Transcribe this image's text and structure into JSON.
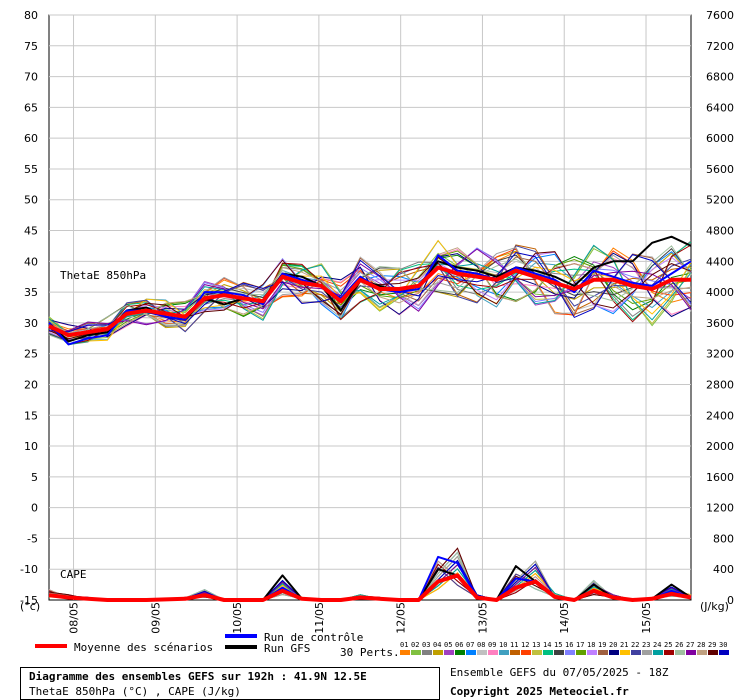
{
  "chart_data": {
    "type": "line",
    "left_axis": {
      "unit": "(°c)",
      "ticks": [
        80,
        75,
        70,
        65,
        60,
        55,
        50,
        45,
        40,
        35,
        30,
        25,
        20,
        15,
        10,
        5,
        0,
        -5,
        -10,
        -15
      ],
      "ylim": [
        -15,
        80
      ]
    },
    "right_axis": {
      "unit": "(J/kg)",
      "ticks": [
        7600,
        7200,
        6800,
        6400,
        6000,
        5600,
        5200,
        4800,
        4400,
        4000,
        3600,
        3200,
        2800,
        2400,
        2000,
        1600,
        1200,
        800,
        400,
        0
      ],
      "ylim": [
        0,
        7600
      ]
    },
    "x": {
      "categories": [
        "08/05",
        "09/05",
        "10/05",
        "11/05",
        "12/05",
        "13/05",
        "14/05",
        "15/05"
      ]
    },
    "annotations": {
      "theta": "ThetaE 850hPa",
      "cape": "CAPE"
    },
    "grid": true,
    "series": [
      {
        "name": "Moyenne des scénarios",
        "group": "theta",
        "color": "#ff0000",
        "y": [
          29.5,
          28,
          28.5,
          29,
          31.5,
          32,
          31.5,
          31,
          34,
          34.5,
          34,
          33.5,
          37.5,
          36.5,
          36,
          33.5,
          37,
          35.5,
          35.5,
          36,
          39,
          38,
          37.5,
          37,
          38.5,
          37.5,
          36.5,
          35.5,
          37,
          37,
          36,
          35.5,
          37,
          37
        ]
      },
      {
        "name": "Run de contrôle",
        "group": "theta",
        "color": "#0000ff",
        "y": [
          30,
          26.5,
          27.5,
          28,
          32,
          32,
          31,
          30.5,
          35,
          35,
          34.5,
          33,
          38,
          37,
          36,
          34,
          37.5,
          35.5,
          35,
          35.5,
          41,
          38.5,
          38,
          37,
          39,
          38,
          37,
          35,
          38.5,
          37.5,
          36.5,
          36,
          38,
          40
        ]
      },
      {
        "name": "Run GFS",
        "group": "theta",
        "color": "#000000",
        "y": [
          30,
          27,
          28,
          28.5,
          32,
          32.5,
          31,
          30.5,
          34,
          33,
          34,
          33.5,
          38,
          37.5,
          36,
          32,
          37,
          36,
          35,
          36,
          40,
          39,
          38.5,
          37.5,
          39,
          38.5,
          37.5,
          36,
          39,
          40,
          40,
          43,
          44,
          42.5
        ]
      },
      {
        "name": "Moyenne des scénarios",
        "group": "cape",
        "color": "#ff0000",
        "y": [
          -14.2,
          -14.6,
          -14.8,
          -15,
          -15,
          -15,
          -14.9,
          -14.8,
          -14.2,
          -15,
          -15,
          -15,
          -13.5,
          -14.8,
          -15,
          -15,
          -14.6,
          -14.8,
          -15,
          -15,
          -12,
          -11,
          -14.6,
          -15,
          -13,
          -12,
          -14.5,
          -15,
          -13.5,
          -14.6,
          -15,
          -14.8,
          -14,
          -14.6
        ]
      },
      {
        "name": "Run de contrôle",
        "group": "cape",
        "color": "#0000ff",
        "y": [
          -14.2,
          -14.6,
          -14.8,
          -15,
          -15,
          -15,
          -14.9,
          -14.8,
          -14,
          -15,
          -15,
          -15,
          -13,
          -14.8,
          -15,
          -15,
          -14.6,
          -14.8,
          -15,
          -15,
          -8,
          -9,
          -14.6,
          -15,
          -11.5,
          -12,
          -14.5,
          -15,
          -13.5,
          -14.6,
          -15,
          -14.8,
          -13.5,
          -14.6
        ]
      },
      {
        "name": "Run GFS",
        "group": "cape",
        "color": "#000000",
        "y": [
          -14.2,
          -14.6,
          -14.8,
          -15,
          -15,
          -15,
          -14.9,
          -14.8,
          -14.2,
          -15,
          -15,
          -15,
          -11,
          -14.8,
          -15,
          -15,
          -14.6,
          -14.8,
          -15,
          -15,
          -10,
          -11,
          -14.6,
          -15,
          -9.5,
          -12,
          -14.5,
          -15,
          -12.5,
          -14.6,
          -15,
          -14.8,
          -12.5,
          -14.6
        ]
      }
    ],
    "members": {
      "label": "30 Perts.",
      "numbers": [
        "01",
        "02",
        "03",
        "04",
        "05",
        "06",
        "07",
        "08",
        "09",
        "10",
        "11",
        "12",
        "13",
        "14",
        "15",
        "16",
        "17",
        "18",
        "19",
        "20",
        "21",
        "22",
        "23",
        "24",
        "25",
        "26",
        "27",
        "28",
        "29",
        "30"
      ],
      "colors": [
        "#ff8000",
        "#80c040",
        "#808080",
        "#c0a000",
        "#a040c0",
        "#008000",
        "#0080ff",
        "#c0c0c0",
        "#ff80c0",
        "#40a0c0",
        "#c06000",
        "#ff4000",
        "#c0c040",
        "#00c080",
        "#404040",
        "#8080ff",
        "#60a000",
        "#c080ff",
        "#a06040",
        "#000080",
        "#ffc000",
        "#4040a0",
        "#a0a0a0",
        "#00a0a0",
        "#a00000",
        "#a0c0a0",
        "#8000a0",
        "#c0a080",
        "#600000",
        "#0000c0"
      ]
    }
  },
  "legend": {
    "mean": "Moyenne des scénarios",
    "control": "Run de contrôle",
    "gfs": "Run GFS",
    "perts": "30 Perts."
  },
  "footer": {
    "title": "Diagramme des ensembles GEFS sur 192h : 41.9N 12.5E",
    "subtitle": "ThetaE 850hPa (°C) , CAPE (J/kg)",
    "run": "Ensemble GEFS du 07/05/2025 - 18Z",
    "copyright": "Copyright 2025 Meteociel.fr"
  }
}
